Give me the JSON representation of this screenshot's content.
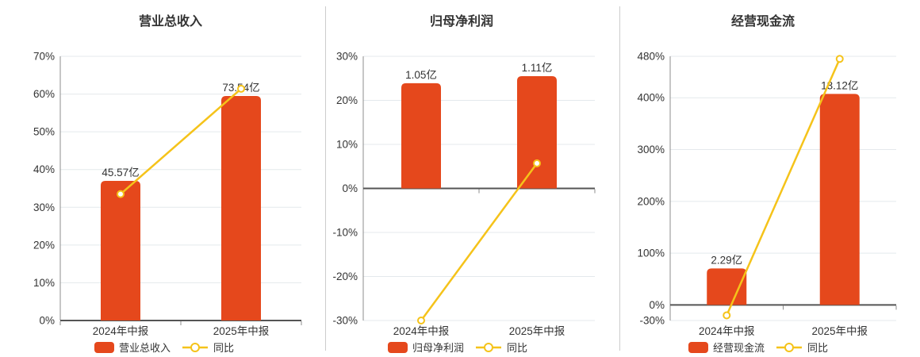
{
  "chart_data": [
    {
      "type": "bar+line",
      "title": "营业总收入",
      "categories": [
        "2024年中报",
        "2025年中报"
      ],
      "bar_series": {
        "name": "营业总收入",
        "unit": "亿",
        "values": [
          45.57,
          73.54
        ],
        "labels": [
          "45.57亿",
          "73.54亿"
        ]
      },
      "line_series": {
        "name": "同比",
        "values_pct": [
          33.5,
          61.4
        ]
      },
      "y_axis": {
        "min": 0,
        "max": 70,
        "ticks": [
          70,
          60,
          50,
          40,
          30,
          20,
          10,
          0
        ],
        "tick_suffix": "%",
        "grid": true
      },
      "layout": {
        "bar_pos_pct": [
          37.0,
          59.5
        ],
        "legend_position": "bottom"
      }
    },
    {
      "type": "bar+line",
      "title": "归母净利润",
      "categories": [
        "2024年中报",
        "2025年中报"
      ],
      "bar_series": {
        "name": "归母净利润",
        "unit": "亿",
        "values": [
          1.05,
          1.11
        ],
        "labels": [
          "1.05亿",
          "1.11亿"
        ]
      },
      "line_series": {
        "name": "同比",
        "values_pct": [
          -30,
          5.7
        ]
      },
      "y_axis": {
        "min": -30,
        "max": 30,
        "ticks": [
          30,
          20,
          10,
          0,
          -10,
          -20,
          -30
        ],
        "tick_suffix": "%",
        "grid": true
      },
      "layout": {
        "bar_pos_pct": [
          23.9,
          25.5
        ],
        "legend_position": "bottom"
      }
    },
    {
      "type": "bar+line",
      "title": "经营现金流",
      "categories": [
        "2024年中报",
        "2025年中报"
      ],
      "bar_series": {
        "name": "经营现金流",
        "unit": "亿",
        "values": [
          2.29,
          13.12
        ],
        "labels": [
          "2.29亿",
          "13.12亿"
        ]
      },
      "line_series": {
        "name": "同比",
        "values_pct": [
          -20,
          475
        ]
      },
      "y_axis": {
        "min": -30,
        "max": 480,
        "ticks": [
          480,
          400,
          300,
          200,
          100,
          0,
          -30
        ],
        "tick_suffix": "%",
        "grid": true
      },
      "layout": {
        "bar_pos_pct": [
          70.6,
          407.4
        ],
        "legend_position": "bottom"
      }
    }
  ],
  "colors": {
    "bar": "#e5481c",
    "line": "#f5c31a",
    "marker_fill": "#ffffff",
    "grid": "#e4e9ec",
    "zero_axis": "#555555",
    "axis": "#8c8c8c",
    "text": "#333333",
    "divider": "#cccccc",
    "background": "#ffffff"
  }
}
